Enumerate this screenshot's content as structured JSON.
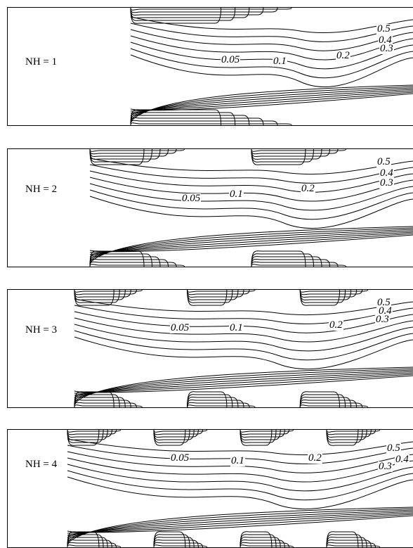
{
  "panels": [
    {
      "label": "NH = 1",
      "heaters": 1,
      "contour_labels": [
        "0.5",
        "0.4",
        "0.3",
        "0.2",
        "0.1",
        "0.05"
      ]
    },
    {
      "label": "NH = 2",
      "heaters": 2,
      "contour_labels": [
        "0.5",
        "0.4",
        "0.3",
        "0.2",
        "0.1",
        "0.05"
      ]
    },
    {
      "label": "NH = 3",
      "heaters": 3,
      "contour_labels": [
        "0.5",
        "0.4",
        "0.3",
        "0.2",
        "0.1",
        "0.05"
      ]
    },
    {
      "label": "NH = 4",
      "heaters": 4,
      "contour_labels": [
        "0.5",
        "0.4",
        "0.3",
        "0.2",
        "0.1",
        "0.05"
      ]
    }
  ]
}
